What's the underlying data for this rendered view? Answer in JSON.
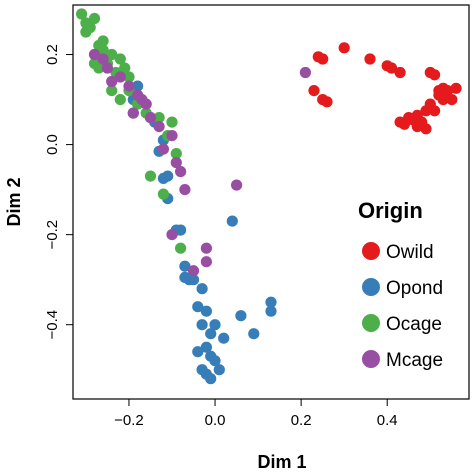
{
  "chart_data": {
    "type": "scatter",
    "xlabel": "Dim 1",
    "ylabel": "Dim 2",
    "xlim": [
      -0.33,
      0.59
    ],
    "ylim": [
      -0.565,
      0.31
    ],
    "xticks": [
      -0.2,
      0.0,
      0.2,
      0.4
    ],
    "xtick_labels": [
      "−0.2",
      "0.0",
      "0.2",
      "0.4"
    ],
    "yticks": [
      -0.4,
      -0.2,
      0.0,
      0.2
    ],
    "ytick_labels": [
      "−0.4",
      "−0.2",
      "0.0",
      "0.2"
    ],
    "grid": false,
    "legend": {
      "title": "Origin",
      "placement": "right",
      "entries": [
        "Owild",
        "Opond",
        "Ocage",
        "Mcage"
      ]
    },
    "series": [
      {
        "name": "Owild",
        "color": "#e41a1c",
        "x": [
          0.3,
          0.24,
          0.25,
          0.36,
          0.4,
          0.41,
          0.43,
          0.23,
          0.25,
          0.26,
          0.5,
          0.51,
          0.53,
          0.52,
          0.54,
          0.52,
          0.56,
          0.53,
          0.55,
          0.5,
          0.51,
          0.49,
          0.47,
          0.45,
          0.46,
          0.48,
          0.44,
          0.43,
          0.47,
          0.49
        ],
        "y": [
          0.215,
          0.195,
          0.19,
          0.19,
          0.175,
          0.17,
          0.16,
          0.12,
          0.1,
          0.095,
          0.16,
          0.155,
          0.125,
          0.12,
          0.12,
          0.11,
          0.125,
          0.1,
          0.1,
          0.09,
          0.075,
          0.075,
          0.065,
          0.06,
          0.055,
          0.05,
          0.045,
          0.05,
          0.04,
          0.035
        ]
      },
      {
        "name": "Opond",
        "color": "#377eb8",
        "x": [
          -0.19,
          -0.15,
          -0.14,
          -0.12,
          -0.13,
          -0.11,
          -0.12,
          -0.08,
          -0.09,
          -0.07,
          -0.06,
          -0.07,
          -0.05,
          -0.03,
          -0.04,
          -0.02,
          -0.03,
          -0.01,
          0.0,
          0.02,
          -0.02,
          -0.04,
          -0.03,
          -0.01,
          0.0,
          0.01,
          -0.02,
          -0.01,
          0.06,
          0.09,
          0.13,
          0.13,
          0.04,
          -0.19,
          -0.18,
          -0.11,
          -0.14
        ],
        "y": [
          0.07,
          0.06,
          0.05,
          0.01,
          -0.015,
          -0.07,
          -0.075,
          -0.19,
          -0.19,
          -0.27,
          -0.3,
          -0.295,
          -0.3,
          -0.32,
          -0.36,
          -0.37,
          -0.4,
          -0.42,
          -0.4,
          -0.43,
          -0.45,
          -0.46,
          -0.5,
          -0.47,
          -0.48,
          -0.5,
          -0.51,
          -0.52,
          -0.38,
          -0.42,
          -0.35,
          -0.37,
          -0.17,
          0.1,
          0.13,
          -0.12,
          0.05
        ]
      },
      {
        "name": "Ocage",
        "color": "#4daf4a",
        "x": [
          -0.31,
          -0.3,
          -0.29,
          -0.28,
          -0.3,
          -0.27,
          -0.26,
          -0.24,
          -0.22,
          -0.25,
          -0.28,
          -0.27,
          -0.23,
          -0.21,
          -0.24,
          -0.2,
          -0.22,
          -0.18,
          -0.16,
          -0.13,
          -0.1,
          -0.11,
          -0.09,
          -0.15,
          -0.12,
          -0.08,
          -0.2,
          -0.26
        ],
        "y": [
          0.29,
          0.27,
          0.26,
          0.28,
          0.25,
          0.22,
          0.21,
          0.2,
          0.19,
          0.18,
          0.18,
          0.17,
          0.16,
          0.17,
          0.12,
          0.12,
          0.1,
          0.09,
          0.07,
          0.06,
          0.05,
          0.02,
          -0.02,
          -0.07,
          -0.11,
          -0.23,
          0.15,
          0.23
        ]
      },
      {
        "name": "Mcage",
        "color": "#984ea3",
        "x": [
          -0.28,
          -0.26,
          -0.25,
          -0.22,
          -0.24,
          -0.2,
          -0.18,
          -0.16,
          -0.19,
          -0.15,
          -0.17,
          -0.13,
          -0.1,
          -0.12,
          -0.09,
          -0.08,
          -0.07,
          -0.05,
          -0.02,
          0.05,
          0.21,
          -0.02,
          -0.1
        ],
        "y": [
          0.2,
          0.19,
          0.17,
          0.15,
          0.14,
          0.13,
          0.11,
          0.09,
          0.07,
          0.06,
          0.1,
          0.04,
          0.02,
          -0.01,
          -0.04,
          -0.06,
          -0.1,
          -0.28,
          -0.26,
          -0.09,
          0.16,
          -0.23,
          -0.2
        ]
      }
    ]
  }
}
